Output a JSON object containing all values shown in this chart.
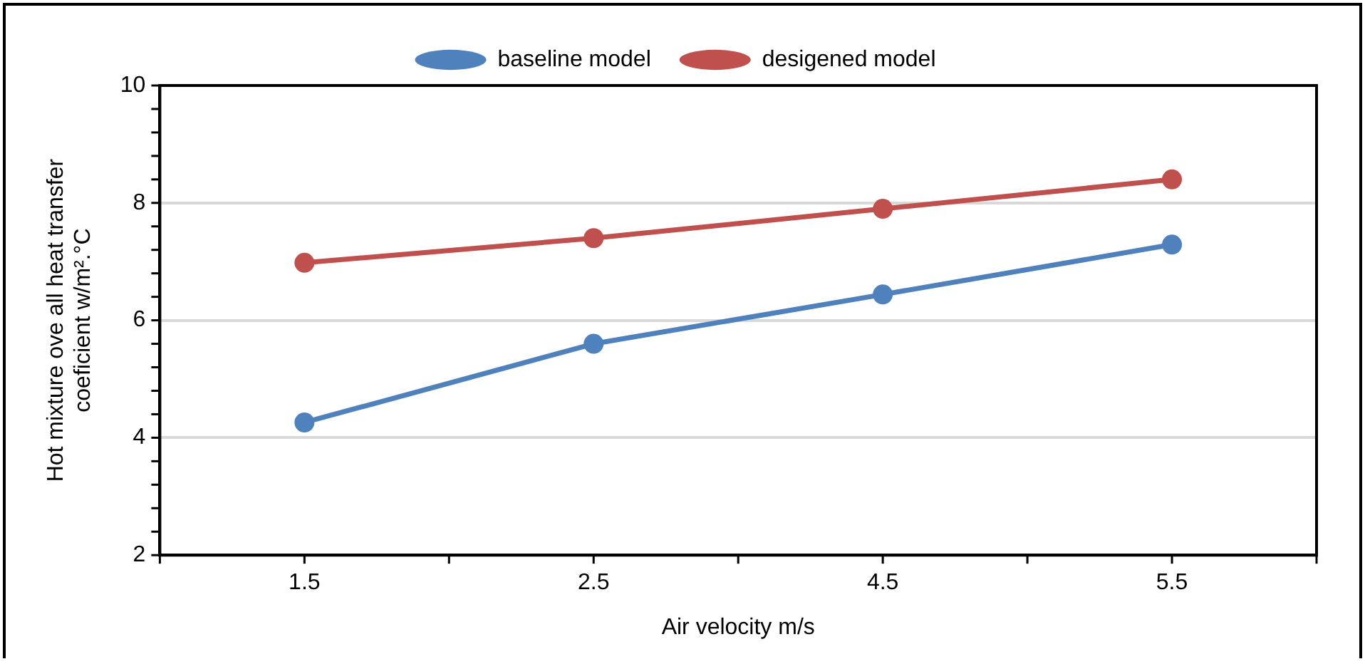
{
  "chart_data": {
    "type": "line",
    "xlabel": "Air velocity m/s",
    "ylabel": "Hot mixture ove all heat transfer\ncoeficient w/m².°C",
    "categories": [
      "1.5",
      "2.5",
      "4.5",
      "5.5"
    ],
    "series": [
      {
        "name": "baseline model",
        "color": "#4f81bd",
        "values": [
          4.26,
          5.6,
          6.44,
          7.29
        ]
      },
      {
        "name": "desigened model",
        "color": "#c0504d",
        "values": [
          6.98,
          7.4,
          7.9,
          8.4
        ]
      }
    ],
    "ylim": [
      2,
      10
    ],
    "yticks": [
      2,
      {
        "value": 2.4,
        "label": null
      },
      {
        "value": 2.8,
        "label": null
      },
      {
        "value": 3.2,
        "label": null
      },
      {
        "value": 3.6,
        "label": null
      },
      4,
      {
        "value": 4.4,
        "label": null
      },
      {
        "value": 4.8,
        "label": null
      },
      {
        "value": 5.2,
        "label": null
      },
      {
        "value": 5.6,
        "label": null
      },
      6,
      {
        "value": 6.4,
        "label": null
      },
      {
        "value": 6.8,
        "label": null
      },
      {
        "value": 7.2,
        "label": null
      },
      {
        "value": 7.6,
        "label": null
      },
      8,
      {
        "value": 8.4,
        "label": null
      },
      {
        "value": 8.8,
        "label": null
      },
      {
        "value": 9.2,
        "label": null
      },
      {
        "value": 9.6,
        "label": null
      },
      10
    ],
    "grid": "y",
    "legend": "top",
    "marker": "circle",
    "line_style": "solid"
  }
}
